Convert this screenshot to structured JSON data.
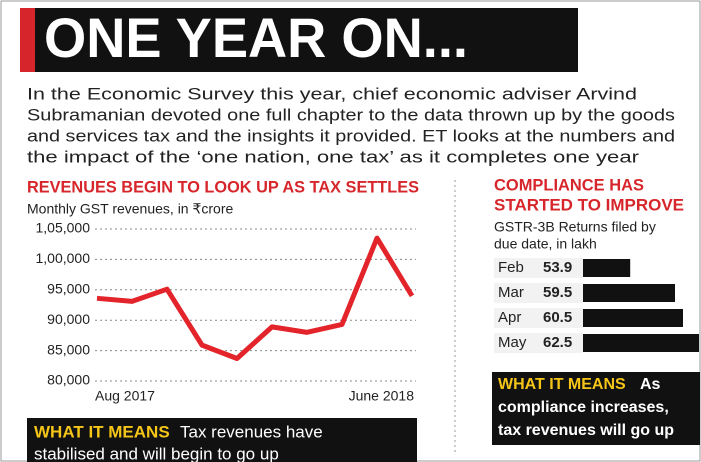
{
  "header": {
    "title": "ONE YEAR ON..."
  },
  "intro_lines": [
    "In the Economic Survey this year, chief economic adviser Arvind",
    "Subramanian devoted one full chapter to the data thrown up by the goods",
    "and services tax and the insights it provided. ET looks at the numbers and",
    "the impact of the ‘one nation, one tax’ as it completes one year"
  ],
  "chart_data": [
    {
      "type": "line",
      "title": "REVENUES BEGIN TO LOOK UP AS TAX SETTLES",
      "subtitle": "Monthly GST revenues, in ₹crore",
      "categories": [
        "Aug 2017",
        null,
        null,
        null,
        null,
        null,
        null,
        null,
        null,
        "June 2018"
      ],
      "values": [
        93600,
        93100,
        95100,
        85900,
        83700,
        88900,
        88000,
        89300,
        103500,
        94000
      ],
      "color": "#e3242b",
      "ylim": [
        80000,
        105000
      ],
      "yticks": [
        {
          "value": 80000,
          "label": "80,000"
        },
        {
          "value": 85000,
          "label": "85,000"
        },
        {
          "value": 90000,
          "label": "90,000"
        },
        {
          "value": 95000,
          "label": "95,000"
        },
        {
          "value": 100000,
          "label": "1,00,000"
        },
        {
          "value": 105000,
          "label": "1,05,000"
        }
      ],
      "grid": true
    },
    {
      "type": "hbar",
      "title_lines": [
        "COMPLIANCE HAS",
        "STARTED TO IMPROVE"
      ],
      "subtitle_lines": [
        "GSTR-3B Returns filed by",
        "due date, in lakh"
      ],
      "categories": [
        "Feb",
        "Mar",
        "Apr",
        "May"
      ],
      "values": [
        53.9,
        59.5,
        60.5,
        62.5
      ],
      "color": "#111111",
      "xlim": [
        48,
        63
      ]
    }
  ],
  "notes": [
    {
      "label": "WHAT IT MEANS",
      "lines": [
        "Tax revenues have",
        "stabilised and will begin to go up"
      ]
    },
    {
      "label": "WHAT IT MEANS",
      "lines": [
        "As",
        "compliance increases,",
        "tax revenues will go up"
      ]
    }
  ]
}
